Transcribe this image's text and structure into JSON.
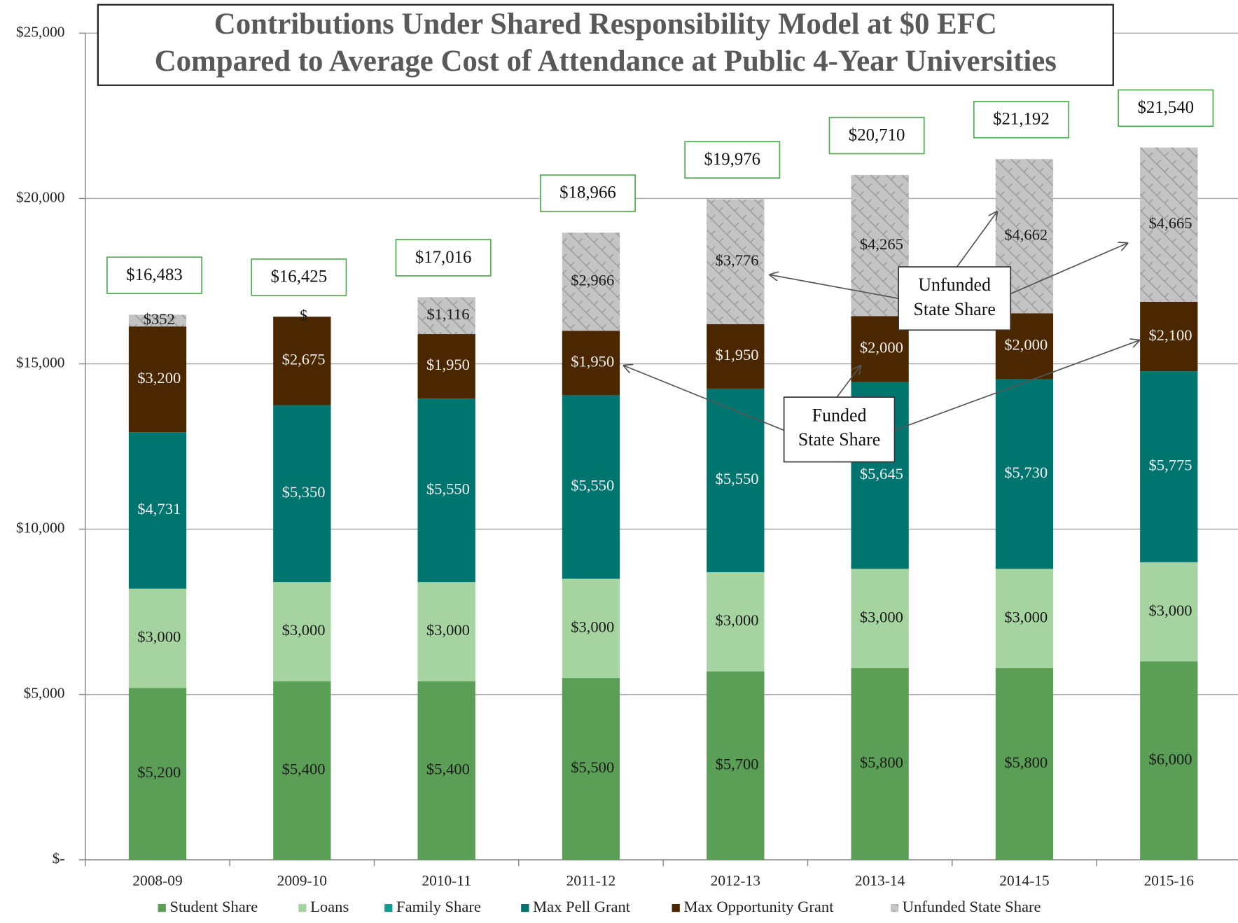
{
  "chart_data": {
    "type": "stacked_bar",
    "title": [
      "Contributions Under Shared Responsibility Model at $0 EFC",
      "Compared to Average Cost of  Attendance at Public 4-Year Universities"
    ],
    "categories": [
      "2008-09",
      "2009-10",
      "2010-11",
      "2011-12",
      "2012-13",
      "2013-14",
      "2014-15",
      "2015-16"
    ],
    "series": [
      {
        "name": "Student Share",
        "color": "#5b9f57",
        "label_color": "#1a1a1a",
        "values": [
          5200,
          5400,
          5400,
          5500,
          5700,
          5800,
          5800,
          6000
        ],
        "value_labels": [
          "$5,200",
          "$5,400",
          "$5,400",
          "$5,500",
          "$5,700",
          "$5,800",
          "$5,800",
          "$6,000"
        ]
      },
      {
        "name": "Loans",
        "color": "#a6d4a0",
        "label_color": "#1a1a1a",
        "values": [
          3000,
          3000,
          3000,
          3000,
          3000,
          3000,
          3000,
          3000
        ],
        "value_labels": [
          "$3,000",
          "$3,000",
          "$3,000",
          "$3,000",
          "$3,000",
          "$3,000",
          "$3,000",
          "$3,000"
        ]
      },
      {
        "name": "Family Share",
        "color": "#169b92",
        "label_color": "#ffffff",
        "values": [
          null,
          null,
          null,
          null,
          null,
          null,
          null,
          null
        ]
      },
      {
        "name": "Max Pell Grant",
        "color": "#00756f",
        "label_color": "#f0f0f0",
        "values": [
          4731,
          5350,
          5550,
          5550,
          5550,
          5645,
          5730,
          5775
        ],
        "value_labels": [
          "$4,731",
          "$5,350",
          "$5,550",
          "$5,550",
          "$5,550",
          "$5,645",
          "$5,730",
          "$5,775"
        ]
      },
      {
        "name": "Max Opportunity Grant",
        "color": "#4b2700",
        "label_color": "#f0f0f0",
        "values": [
          3200,
          2675,
          1950,
          1950,
          1950,
          2000,
          2000,
          2100
        ],
        "value_labels": [
          "$3,200",
          "$2,675",
          "$1,950",
          "$1,950",
          "$1,950",
          "$2,000",
          "$2,000",
          "$2,100"
        ]
      },
      {
        "name": "Unfunded State Share",
        "color": "#c4c4c4",
        "label_color": "#1a1a1a",
        "values": [
          352,
          0,
          1116,
          2966,
          3776,
          4265,
          4662,
          4665
        ],
        "value_labels": [
          "$352",
          "$",
          "$1,116",
          "$2,966",
          "$3,776",
          "$4,265",
          "$4,662",
          "$4,665"
        ]
      }
    ],
    "totals": [
      16483,
      16425,
      17016,
      18966,
      19976,
      20710,
      21192,
      21540
    ],
    "total_labels": [
      "$16,483",
      "$16,425",
      "$17,016",
      "$18,966",
      "$19,976",
      "$20,710",
      "$21,192",
      "$21,540"
    ],
    "ylim": [
      0,
      25000
    ],
    "yticks": [
      {
        "value": 0,
        "label": "$-"
      },
      {
        "value": 5000,
        "label": "$5,000"
      },
      {
        "value": 10000,
        "label": "$10,000"
      },
      {
        "value": 15000,
        "label": "$15,000"
      },
      {
        "value": 20000,
        "label": "$20,000"
      },
      {
        "value": 25000,
        "label": "$25,000"
      }
    ],
    "grid": true,
    "annotations": [
      "Unfunded",
      "State Share",
      "Funded",
      "State Share"
    ]
  }
}
